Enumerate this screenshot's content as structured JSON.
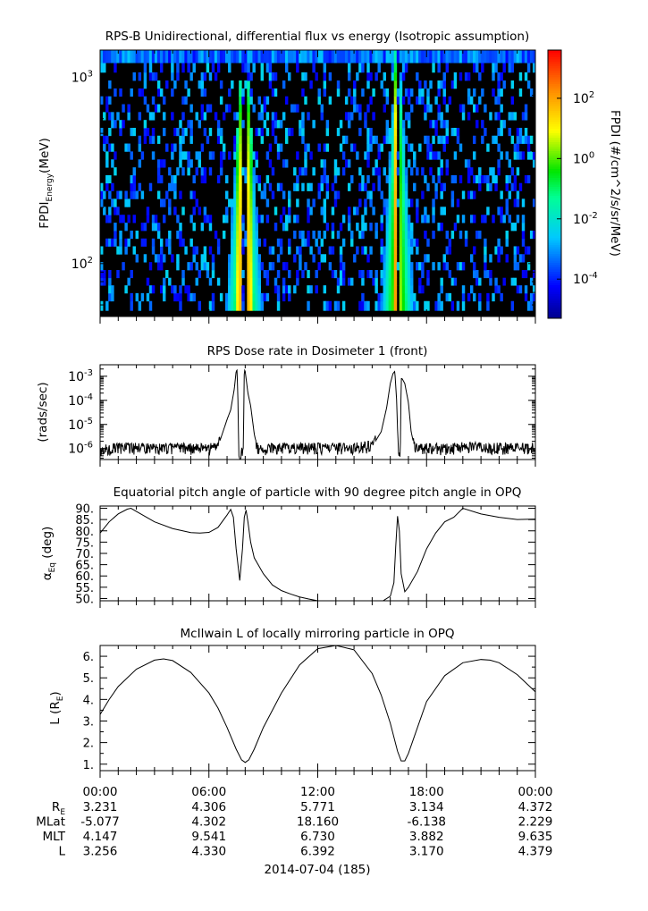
{
  "colors": {
    "axis": "#000000",
    "background": "#ffffff",
    "no_data": "#000000"
  },
  "chart_data": [
    {
      "type": "heatmap",
      "title": "RPS-B  Unidirectional, differential flux vs energy (Isotropic assumption)",
      "ylabel_main": "FPDI",
      "ylabel_sub": "Energy",
      "ylabel_unit": "(MeV)",
      "y_scale": "log",
      "ylim": [
        52,
        1400
      ],
      "y_ticks": [
        {
          "value": 100,
          "base": "10",
          "exp": "2"
        },
        {
          "value": 1000,
          "base": "10",
          "exp": "3"
        }
      ],
      "energy_channels_mev": [
        60,
        66,
        73,
        80,
        88,
        97,
        107,
        118,
        130,
        143,
        158,
        174,
        192,
        212,
        234,
        258,
        284,
        313,
        345,
        381,
        420,
        463,
        510,
        562,
        620,
        683,
        753,
        830,
        915,
        1010,
        1120,
        1280
      ],
      "x_hours": [
        0,
        24
      ],
      "flux_peaks_hours": [
        7.7,
        8.2,
        16.4
      ],
      "colorbar": {
        "label": "FPDI (#/cm^2/s/sr/MeV)",
        "scale": "log",
        "range_log10": [
          -5.3,
          3.6
        ],
        "ticks": [
          {
            "base": "10",
            "exp": "2",
            "log": 2
          },
          {
            "base": "10",
            "exp": "0",
            "log": 0
          },
          {
            "base": "10",
            "exp": "-2",
            "log": -2
          },
          {
            "base": "10",
            "exp": "-4",
            "log": -4
          }
        ]
      }
    },
    {
      "type": "line",
      "title": "RPS  Dose rate in Dosimeter 1 (front)",
      "ylabel": "(rads/sec)",
      "y_scale": "log",
      "ylim": [
        3.5e-07,
        0.003
      ],
      "y_ticks": [
        {
          "log": -6,
          "base": "10",
          "exp": "-6"
        },
        {
          "log": -5,
          "base": "10",
          "exp": "-5"
        },
        {
          "log": -4,
          "base": "10",
          "exp": "-4"
        },
        {
          "log": -3,
          "base": "10",
          "exp": "-3"
        }
      ],
      "x_hours": [
        0,
        0.5,
        1,
        2,
        3,
        4,
        5,
        6,
        6.5,
        7,
        7.2,
        7.4,
        7.5,
        7.55,
        7.6,
        7.65,
        7.75,
        7.9,
        7.95,
        8.0,
        8.05,
        8.15,
        8.3,
        8.5,
        8.7,
        9.0,
        9.5,
        10,
        12,
        14,
        15,
        15.5,
        15.8,
        16.0,
        16.15,
        16.25,
        16.35,
        16.45,
        16.55,
        16.6,
        16.65,
        16.8,
        17.0,
        17.15,
        17.35,
        17.6,
        18,
        19,
        20,
        22,
        24
      ],
      "y_values": [
        8e-07,
        9e-07,
        1e-06,
        1e-06,
        9e-07,
        1e-06,
        1e-06,
        9e-07,
        1.2e-06,
        1.6e-05,
        4e-05,
        0.0003,
        0.0016,
        0.0018,
        0.0001,
        4e-07,
        4e-07,
        1.5e-06,
        0.0019,
        0.0016,
        0.0008,
        0.0002,
        6e-05,
        4e-06,
        8e-07,
        8e-07,
        1e-06,
        1e-06,
        1e-06,
        1e-06,
        1.2e-06,
        5e-06,
        5e-05,
        0.0005,
        0.0013,
        0.0016,
        0.0001,
        4e-07,
        4e-07,
        0.0008,
        0.0008,
        0.0005,
        8e-05,
        5e-06,
        1e-06,
        9e-07,
        1e-06,
        9e-07,
        1.1e-06,
        1e-06,
        1e-06
      ]
    },
    {
      "type": "line",
      "title": "Equatorial pitch angle of particle with 90 degree pitch angle in OPQ",
      "ylabel_main": "α",
      "ylabel_sub": "Eq",
      "ylabel_unit": " (deg)",
      "ylim": [
        49,
        91
      ],
      "y_ticks": [
        "50.",
        "55.",
        "60.",
        "65.",
        "70.",
        "75.",
        "80.",
        "85.",
        "90."
      ],
      "x_hours": [
        0,
        0.5,
        1,
        1.5,
        1.7,
        2,
        3,
        4,
        5,
        5.5,
        6,
        6.5,
        7,
        7.2,
        7.35,
        7.5,
        7.7,
        7.85,
        7.95,
        8.05,
        8.15,
        8.3,
        8.5,
        9,
        9.5,
        10,
        10.5,
        11,
        11.5,
        12,
        14,
        15.6,
        16.0,
        16.2,
        16.3,
        16.4,
        16.5,
        16.6,
        16.8,
        17,
        17.5,
        18,
        18.5,
        19,
        19.5,
        20,
        21,
        22,
        23,
        24
      ],
      "y_values": [
        79,
        84,
        87.5,
        89.6,
        90,
        88.6,
        84,
        81,
        79.2,
        79,
        79.3,
        81.5,
        87,
        89.5,
        86,
        72,
        58,
        72,
        86,
        89.2,
        84,
        75,
        68,
        61,
        56,
        53.5,
        52,
        50.7,
        49.8,
        49,
        49,
        49,
        51,
        57,
        73,
        86.5,
        80,
        61,
        53,
        55,
        62,
        72,
        79,
        84,
        86,
        90,
        87.5,
        86,
        85,
        85.2
      ]
    },
    {
      "type": "line",
      "title": "McIlwain L of locally mirroring particle in OPQ",
      "ylabel_main": "L (R",
      "ylabel_sub": "E",
      "ylabel_unit": ")",
      "ylim": [
        0.7,
        6.5
      ],
      "y_ticks": [
        "1.",
        "2.",
        "3.",
        "4.",
        "5.",
        "6."
      ],
      "x_hours": [
        0,
        0.5,
        1,
        2,
        3,
        3.5,
        4,
        5,
        6,
        6.5,
        7,
        7.5,
        7.8,
        8.0,
        8.2,
        8.5,
        9,
        10,
        11,
        12,
        13,
        14,
        15,
        15.5,
        16,
        16.4,
        16.6,
        16.8,
        17,
        17.5,
        18,
        19,
        20,
        21,
        21.5,
        22,
        23,
        24
      ],
      "y_values": [
        3.3,
        4.0,
        4.6,
        5.4,
        5.82,
        5.88,
        5.8,
        5.25,
        4.3,
        3.6,
        2.7,
        1.7,
        1.2,
        1.08,
        1.2,
        1.7,
        2.7,
        4.3,
        5.6,
        6.35,
        6.6,
        6.3,
        5.2,
        4.2,
        2.9,
        1.6,
        1.15,
        1.15,
        1.5,
        2.7,
        3.9,
        5.1,
        5.7,
        5.85,
        5.82,
        5.7,
        5.15,
        4.35
      ]
    }
  ],
  "time_axis": {
    "tick_labels": [
      "00:00",
      "06:00",
      "12:00",
      "18:00",
      "00:00"
    ],
    "rows": [
      {
        "label": "R",
        "label_sub": "E",
        "values": [
          "3.231",
          "4.306",
          "5.771",
          "3.134",
          "4.372"
        ]
      },
      {
        "label": "MLat",
        "values": [
          "-5.077",
          "4.302",
          "18.160",
          "-6.138",
          "2.229"
        ]
      },
      {
        "label": "MLT",
        "values": [
          "4.147",
          "9.541",
          "6.730",
          "3.882",
          "9.635"
        ]
      },
      {
        "label": "L",
        "values": [
          "3.256",
          "4.330",
          "6.392",
          "3.170",
          "4.379"
        ]
      }
    ],
    "date_label": "2014-07-04 (185)"
  }
}
